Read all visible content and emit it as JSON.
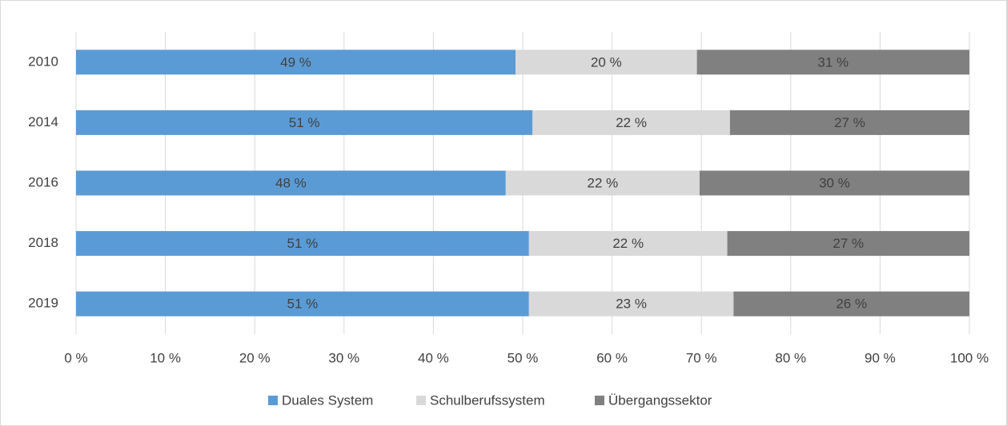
{
  "chart_data": {
    "type": "stacked-barh",
    "categories": [
      "2010",
      "2014",
      "2016",
      "2018",
      "2019"
    ],
    "series": [
      {
        "name": "Duales System",
        "color": "#5b9bd5",
        "values": [
          49.2,
          51.1,
          48.1,
          50.7,
          50.7
        ],
        "value_labels": [
          "49 %",
          "51 %",
          "48 %",
          "51 %",
          "51 %"
        ]
      },
      {
        "name": "Schulberufssystem",
        "color": "#d9d9d9",
        "values": [
          20.3,
          22.1,
          21.7,
          22.2,
          22.9
        ],
        "value_labels": [
          "20 %",
          "22 %",
          "22 %",
          "22 %",
          "23 %"
        ]
      },
      {
        "name": "Übergangssektor",
        "color": "#808080",
        "values": [
          30.5,
          26.8,
          30.2,
          27.1,
          26.4
        ],
        "value_labels": [
          "31 %",
          "27 %",
          "30 %",
          "27 %",
          "26 %"
        ]
      }
    ],
    "xlim": [
      0,
      100
    ],
    "xticks": [
      {
        "value": 0,
        "label": "0 %"
      },
      {
        "value": 10,
        "label": "10 %"
      },
      {
        "value": 20,
        "label": "20 %"
      },
      {
        "value": 30,
        "label": "30 %"
      },
      {
        "value": 40,
        "label": "40 %"
      },
      {
        "value": 50,
        "label": "50 %"
      },
      {
        "value": 60,
        "label": "60 %"
      },
      {
        "value": 70,
        "label": "70 %"
      },
      {
        "value": 80,
        "label": "80 %"
      },
      {
        "value": 90,
        "label": "90 %"
      },
      {
        "value": 100,
        "label": "100 %"
      }
    ],
    "grid": true,
    "legend": "bottom"
  }
}
